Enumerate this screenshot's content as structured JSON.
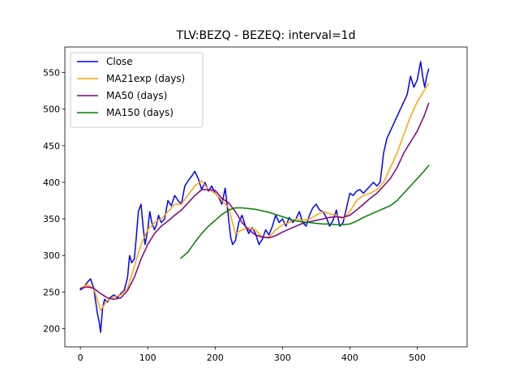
{
  "chart_data": {
    "type": "line",
    "title": "TLV:BEZQ - BEZEQ: interval=1d",
    "xlabel": "",
    "ylabel": "",
    "xlim": [
      -23,
      574
    ],
    "ylim": [
      175,
      585
    ],
    "xticks": [
      0,
      100,
      200,
      300,
      400,
      500
    ],
    "yticks": [
      200,
      250,
      300,
      350,
      400,
      450,
      500,
      550
    ],
    "grid": false,
    "legend_position": "top-left",
    "series": [
      {
        "name": "Close",
        "color": "#0000ff",
        "x": [
          0,
          5,
          10,
          15,
          20,
          25,
          28,
          30,
          33,
          36,
          40,
          45,
          50,
          55,
          60,
          65,
          70,
          73,
          76,
          80,
          83,
          86,
          90,
          93,
          96,
          100,
          103,
          106,
          110,
          113,
          116,
          120,
          125,
          130,
          135,
          140,
          145,
          150,
          155,
          160,
          165,
          170,
          175,
          180,
          185,
          190,
          195,
          200,
          205,
          210,
          215,
          220,
          223,
          226,
          230,
          235,
          240,
          245,
          250,
          255,
          260,
          265,
          270,
          275,
          280,
          285,
          290,
          295,
          300,
          305,
          310,
          315,
          320,
          325,
          330,
          335,
          340,
          345,
          350,
          355,
          360,
          365,
          370,
          375,
          380,
          385,
          390,
          395,
          400,
          405,
          410,
          415,
          420,
          425,
          430,
          435,
          440,
          445,
          450,
          455,
          460,
          465,
          470,
          475,
          480,
          485,
          490,
          495,
          500,
          505,
          508,
          511,
          514,
          517
        ],
        "y": [
          253,
          256,
          263,
          268,
          255,
          222,
          208,
          195,
          228,
          240,
          236,
          243,
          246,
          242,
          248,
          252,
          270,
          300,
          290,
          295,
          325,
          360,
          370,
          340,
          315,
          335,
          360,
          345,
          335,
          342,
          355,
          345,
          350,
          375,
          368,
          382,
          375,
          370,
          395,
          402,
          408,
          415,
          405,
          390,
          400,
          388,
          395,
          385,
          380,
          370,
          392,
          350,
          325,
          315,
          320,
          345,
          355,
          340,
          330,
          338,
          330,
          315,
          322,
          335,
          328,
          340,
          355,
          345,
          350,
          340,
          352,
          345,
          350,
          360,
          345,
          340,
          355,
          365,
          370,
          362,
          360,
          352,
          340,
          348,
          362,
          340,
          345,
          365,
          385,
          382,
          388,
          390,
          385,
          390,
          395,
          400,
          395,
          400,
          440,
          460,
          470,
          480,
          490,
          500,
          510,
          520,
          545,
          530,
          540,
          565,
          545,
          530,
          545,
          555
        ]
      },
      {
        "name": "MA21exp (days)",
        "color": "#ffa500",
        "x": [
          0,
          10,
          20,
          25,
          30,
          35,
          40,
          50,
          60,
          70,
          80,
          90,
          100,
          110,
          120,
          130,
          140,
          150,
          160,
          170,
          180,
          190,
          200,
          210,
          220,
          230,
          240,
          250,
          260,
          270,
          280,
          290,
          300,
          310,
          320,
          330,
          340,
          350,
          360,
          370,
          380,
          390,
          400,
          410,
          420,
          430,
          440,
          450,
          460,
          470,
          480,
          490,
          500,
          510,
          517
        ],
        "y": [
          255,
          260,
          255,
          240,
          225,
          232,
          238,
          243,
          246,
          255,
          285,
          315,
          335,
          345,
          350,
          360,
          370,
          370,
          383,
          395,
          402,
          390,
          385,
          375,
          365,
          330,
          335,
          338,
          335,
          325,
          325,
          335,
          342,
          345,
          350,
          348,
          350,
          355,
          360,
          357,
          355,
          350,
          360,
          375,
          382,
          385,
          390,
          400,
          420,
          440,
          465,
          490,
          510,
          525,
          535
        ]
      },
      {
        "name": "MA50 (days)",
        "color": "#800080",
        "x": [
          0,
          10,
          20,
          30,
          40,
          50,
          60,
          70,
          80,
          90,
          100,
          110,
          120,
          130,
          140,
          150,
          160,
          170,
          180,
          190,
          200,
          210,
          220,
          230,
          240,
          250,
          260,
          270,
          280,
          290,
          300,
          310,
          320,
          330,
          340,
          350,
          360,
          370,
          380,
          390,
          400,
          410,
          420,
          430,
          440,
          450,
          460,
          470,
          480,
          490,
          500,
          510,
          517
        ],
        "y": [
          255,
          257,
          255,
          248,
          242,
          240,
          242,
          252,
          270,
          295,
          315,
          330,
          340,
          347,
          355,
          362,
          372,
          382,
          390,
          390,
          389,
          378,
          372,
          360,
          345,
          335,
          328,
          325,
          324,
          327,
          332,
          336,
          340,
          344,
          346,
          348,
          350,
          352,
          353,
          352,
          355,
          362,
          370,
          378,
          385,
          395,
          405,
          420,
          440,
          455,
          470,
          490,
          508
        ]
      },
      {
        "name": "MA150 (days)",
        "color": "#008000",
        "x": [
          149,
          160,
          170,
          180,
          190,
          200,
          210,
          220,
          230,
          240,
          250,
          260,
          270,
          280,
          290,
          300,
          310,
          320,
          330,
          340,
          350,
          360,
          370,
          380,
          390,
          400,
          410,
          420,
          430,
          440,
          450,
          460,
          470,
          480,
          490,
          500,
          510,
          517
        ],
        "y": [
          296,
          305,
          318,
          330,
          340,
          348,
          356,
          362,
          365,
          365,
          364,
          363,
          361,
          359,
          356,
          353,
          350,
          347,
          346,
          345,
          344,
          343,
          343,
          342,
          342,
          343,
          347,
          352,
          356,
          360,
          364,
          368,
          375,
          385,
          395,
          405,
          415,
          423
        ]
      }
    ]
  }
}
